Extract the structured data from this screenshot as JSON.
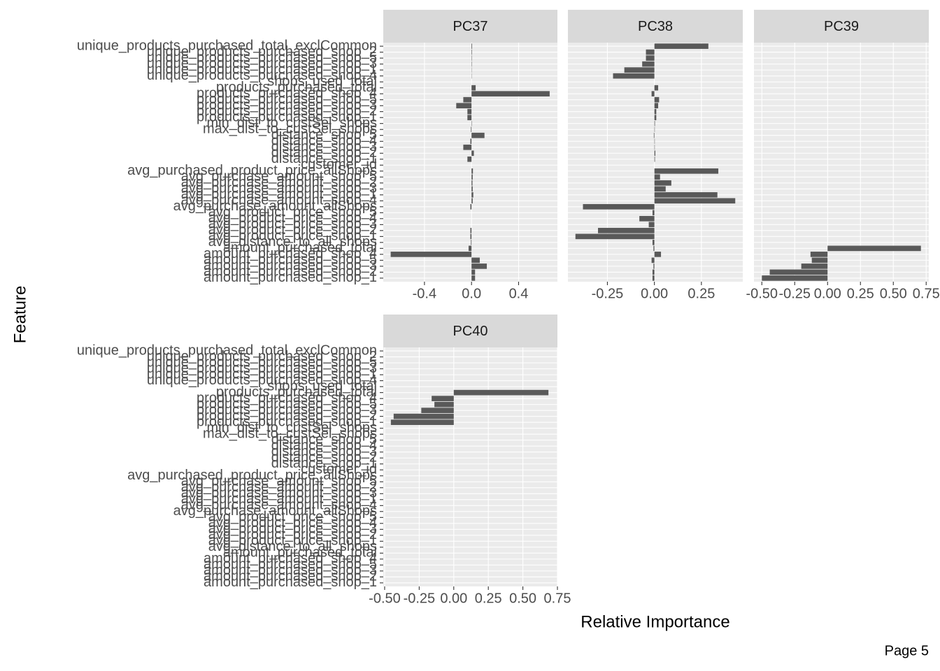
{
  "chart_data": {
    "type": "bar",
    "orientation": "horizontal",
    "x_label": "Relative Importance",
    "y_label": "Feature",
    "color": "#595959",
    "grid": true,
    "categories": [
      "unique_products_purchased_total_exclCommon",
      "unique_products_purchased_shop_2",
      "unique_products_purchased_shop_5",
      "unique_products_purchased_shop_3",
      "unique_products_purchased_shop_1",
      "unique_products_purchased_shop_4",
      "shops_used_total",
      "products_purchased_total",
      "products_purchased_shop_4",
      "products_purchased_shop_5",
      "products_purchased_shop_3",
      "products_purchased_shop_2",
      "products_purchased_shop_1",
      "min_dist_to_custSel_shops",
      "max_dist_to_custSel_shops",
      "distance_shop_5",
      "distance_shop_4",
      "distance_shop_3",
      "distance_shop_2",
      "distance_shop_1",
      "customer_id",
      "avg_purchased_product_price_allShops",
      "avg_purchase_amount_shop_5",
      "avg_purchase_amount_shop_2",
      "avg_purchase_amount_shop_3",
      "avg_purchase_amount_shop_1",
      "avg_purchase_amount_shop_4",
      "avg_purchase_amount_allShops",
      "avg_product_price_shop_5",
      "avg_product_price_shop_4",
      "avg_product_price_shop_3",
      "avg_product_price_shop_2",
      "avg_product_price_shop_1",
      "avg_distance_to_all_shops",
      "amount_purchased_total",
      "amount_purchased_shop_4",
      "amount_purchased_shop_5",
      "amount_purchased_shop_3",
      "amount_purchased_shop_2",
      "amount_purchased_shop_1"
    ],
    "panels": [
      {
        "title": "PC37",
        "xlim": [
          -0.75,
          0.73
        ],
        "xticks": [
          -0.4,
          {
            "value": 0,
            "label": "0.0"
          },
          0.4
        ],
        "values": [
          0.005,
          0.004,
          0.003,
          0.003,
          0.002,
          0.002,
          0,
          0.035,
          0.664,
          -0.07,
          -0.13,
          -0.035,
          -0.035,
          0.003,
          -0.005,
          0.11,
          -0.01,
          -0.07,
          0.02,
          -0.035,
          0,
          0.012,
          0.01,
          0.008,
          0.01,
          0.015,
          0.01,
          -0.01,
          0,
          0,
          0,
          -0.01,
          -0.01,
          -0.005,
          -0.025,
          -0.687,
          0.07,
          0.13,
          0.03,
          0.03
        ]
      },
      {
        "title": "PC38",
        "xlim": [
          -0.46,
          0.47
        ],
        "xticks": [
          -0.25,
          {
            "value": 0,
            "label": "0.00"
          },
          0.25
        ],
        "values": [
          0.287,
          -0.045,
          -0.045,
          -0.065,
          -0.16,
          -0.22,
          0,
          0.02,
          -0.015,
          0.025,
          0.02,
          0.01,
          0.01,
          0.003,
          0.002,
          -0.003,
          0.002,
          0.002,
          0.005,
          0.003,
          0,
          0.34,
          0.03,
          0.09,
          0.06,
          0.335,
          0.43,
          -0.38,
          -0.01,
          -0.08,
          -0.03,
          -0.3,
          -0.42,
          -0.01,
          -0.005,
          0.035,
          -0.015,
          -0.005,
          -0.01,
          -0.01
        ]
      },
      {
        "title": "PC39",
        "xlim": [
          -0.56,
          0.77
        ],
        "xticks": [
          {
            "value": -0.5,
            "label": "-0.50"
          },
          -0.25,
          {
            "value": 0,
            "label": "0.00"
          },
          0.25,
          {
            "value": 0.5,
            "label": "0.50"
          },
          0.75
        ],
        "values": [
          0,
          0,
          0,
          0,
          0,
          0,
          0,
          0,
          0,
          0,
          0,
          0,
          0,
          0,
          0,
          0,
          0,
          0,
          0,
          0,
          0,
          0,
          0,
          0,
          0,
          0,
          0,
          0,
          0,
          0,
          0,
          0,
          0,
          0,
          0.71,
          -0.13,
          -0.12,
          -0.2,
          -0.44,
          -0.5
        ]
      },
      {
        "title": "PC40",
        "xlim": [
          -0.51,
          0.75
        ],
        "xticks": [
          {
            "value": -0.5,
            "label": "-0.50"
          },
          -0.25,
          {
            "value": 0,
            "label": "0.00"
          },
          0.25,
          {
            "value": 0.5,
            "label": "0.50"
          },
          0.75
        ],
        "values": [
          0,
          0,
          0,
          0,
          0,
          0,
          0,
          0.685,
          -0.16,
          -0.14,
          -0.235,
          -0.435,
          -0.455,
          0,
          0,
          0,
          0,
          0,
          0,
          0,
          0,
          0,
          0,
          0,
          0,
          0,
          0,
          0,
          0,
          0,
          0,
          0,
          0,
          0,
          0,
          0,
          0,
          0,
          0,
          0
        ]
      }
    ]
  },
  "footer": "Page 5"
}
